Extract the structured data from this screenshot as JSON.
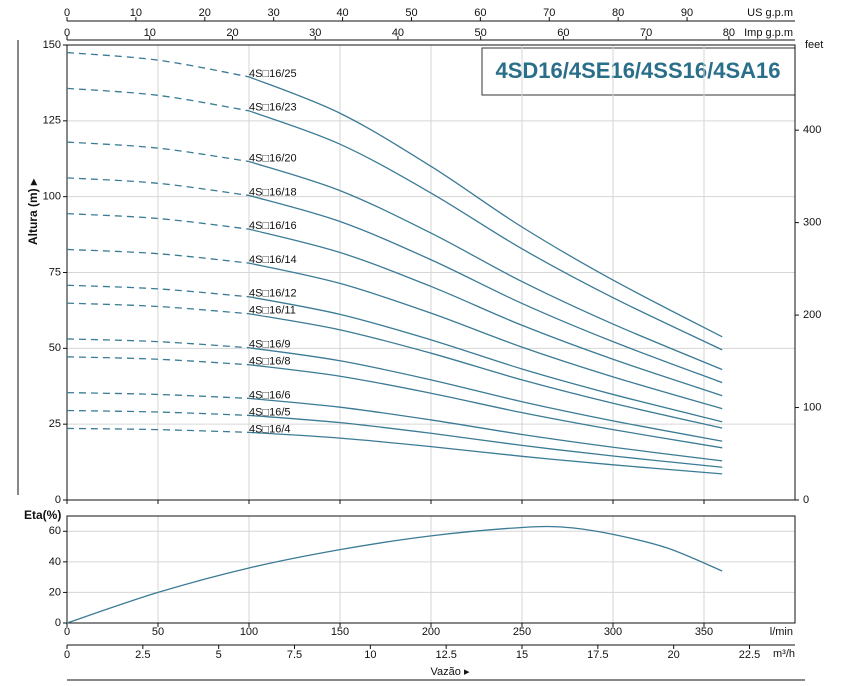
{
  "chart_data": [
    {
      "type": "line",
      "title": "4SD16/4SE16/4SS16/4SA16",
      "y_label": "Altura (m) ▸",
      "x": [
        0,
        50,
        100,
        150,
        200,
        250,
        300,
        360
      ],
      "xlim": [
        0,
        400
      ],
      "xticks": [
        0,
        50,
        100,
        150,
        200,
        250,
        300,
        350
      ],
      "ylim": [
        0,
        150
      ],
      "yticks": [
        0,
        25,
        50,
        75,
        100,
        125,
        150
      ],
      "y2_label": "feet",
      "y2lim": [
        0,
        492.1
      ],
      "y2ticks": [
        0,
        100,
        200,
        300,
        400
      ],
      "top_axes": [
        {
          "label": "US g.p.m",
          "lim": [
            0,
            105.67
          ],
          "ticks": [
            0,
            10,
            20,
            30,
            40,
            50,
            60,
            70,
            80,
            90
          ]
        },
        {
          "label": "Imp g.p.m",
          "lim": [
            0,
            87.99
          ],
          "ticks": [
            0,
            10,
            20,
            30,
            40,
            50,
            60,
            70,
            80
          ]
        }
      ],
      "grid": true,
      "dashed_below_x": 100,
      "color": "#3b7b95",
      "series": [
        {
          "name": "4S□16/25",
          "values": [
            147.5,
            145,
            139.5,
            127.5,
            110,
            90,
            72.5,
            53.8
          ]
        },
        {
          "name": "4S□16/23",
          "values": [
            135.7,
            133.4,
            128.3,
            117.3,
            101.2,
            82.8,
            66.7,
            49.5
          ]
        },
        {
          "name": "4S□16/20",
          "values": [
            118,
            116,
            111.6,
            102,
            88,
            72,
            58,
            43
          ]
        },
        {
          "name": "4S□16/18",
          "values": [
            106.2,
            104.4,
            100.4,
            91.8,
            79.2,
            64.8,
            52.2,
            38.7
          ]
        },
        {
          "name": "4S□16/16",
          "values": [
            94.4,
            92.8,
            89.3,
            81.6,
            70.4,
            57.6,
            46.4,
            34.4
          ]
        },
        {
          "name": "4S□16/14",
          "values": [
            82.6,
            81.2,
            78.1,
            71.4,
            61.6,
            50.4,
            40.6,
            30.1
          ]
        },
        {
          "name": "4S□16/12",
          "values": [
            70.8,
            69.6,
            67,
            61.2,
            52.8,
            43.2,
            34.8,
            25.8
          ]
        },
        {
          "name": "4S□16/11",
          "values": [
            64.9,
            63.8,
            61.4,
            56.1,
            48.4,
            39.6,
            31.9,
            23.7
          ]
        },
        {
          "name": "4S□16/9",
          "values": [
            53.1,
            52.2,
            50.2,
            45.9,
            39.6,
            32.4,
            26.1,
            19.4
          ]
        },
        {
          "name": "4S□16/8",
          "values": [
            47.2,
            46.4,
            44.6,
            40.8,
            35.2,
            28.8,
            23.2,
            17.2
          ]
        },
        {
          "name": "4S□16/6",
          "values": [
            35.4,
            34.8,
            33.5,
            30.6,
            26.4,
            21.6,
            17.4,
            12.9
          ]
        },
        {
          "name": "4S□16/5",
          "values": [
            29.5,
            29,
            27.9,
            25.5,
            22,
            18,
            14.5,
            10.8
          ]
        },
        {
          "name": "4S□16/4",
          "values": [
            23.6,
            23.2,
            22.3,
            20.4,
            17.6,
            14.4,
            11.6,
            8.6
          ]
        }
      ]
    },
    {
      "type": "line",
      "y_label": "Eta(%)",
      "x": [
        0,
        50,
        100,
        150,
        200,
        250,
        275,
        300,
        330,
        360
      ],
      "values": [
        0,
        20,
        36,
        48,
        57,
        62.5,
        62.5,
        58,
        49,
        34
      ],
      "xlim": [
        0,
        400
      ],
      "xticks": [
        0,
        50,
        100,
        150,
        200,
        250,
        300,
        350
      ],
      "x_unit": "l/min",
      "ylim": [
        0,
        70
      ],
      "yticks": [
        0,
        20,
        40,
        60
      ],
      "x2_unit": "m³/h",
      "x2lim": [
        0,
        24
      ],
      "x2ticks": [
        0,
        2.5,
        5,
        7.5,
        10,
        12.5,
        15,
        17.5,
        20,
        22.5
      ],
      "x_label": "Vazão ▸",
      "grid": true,
      "color": "#3b7b95"
    }
  ]
}
